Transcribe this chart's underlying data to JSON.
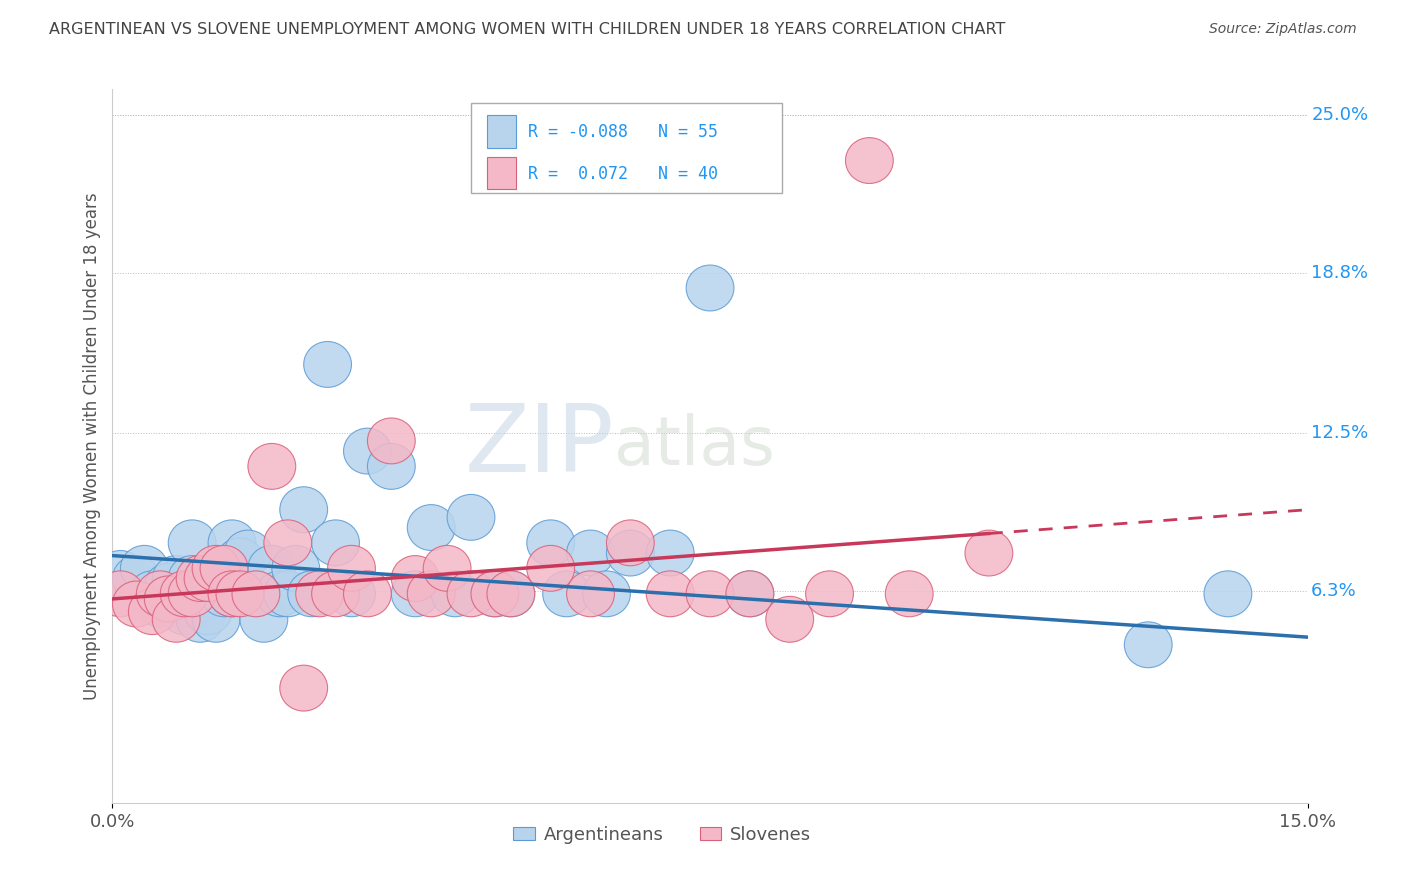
{
  "title": "ARGENTINEAN VS SLOVENE UNEMPLOYMENT AMONG WOMEN WITH CHILDREN UNDER 18 YEARS CORRELATION CHART",
  "source": "Source: ZipAtlas.com",
  "ylabel": "Unemployment Among Women with Children Under 18 years",
  "xlim": [
    0.0,
    0.15
  ],
  "ylim": [
    -0.02,
    0.26
  ],
  "plot_ylim": [
    -0.02,
    0.26
  ],
  "ytick_positions": [
    0.063,
    0.125,
    0.188,
    0.25
  ],
  "yticklabels": [
    "6.3%",
    "12.5%",
    "18.8%",
    "25.0%"
  ],
  "xticks": [
    0.0,
    0.15
  ],
  "xticklabels": [
    "0.0%",
    "15.0%"
  ],
  "color_argentinean_fill": "#b8d4ed",
  "color_argentinean_edge": "#5b9bd5",
  "color_slovene_fill": "#f4b8c8",
  "color_slovene_edge": "#d9607a",
  "color_line_argentinean": "#2c6fad",
  "color_line_slovene": "#c8385a",
  "background_color": "#ffffff",
  "grid_color": "#bbbbbb",
  "title_color": "#444444",
  "label_color": "#555555",
  "tick_label_color": "#2196f3",
  "watermark_zip_color": "#c8d8e8",
  "watermark_atlas_color": "#d0d8d0",
  "argentinean_x": [
    0.001,
    0.003,
    0.004,
    0.005,
    0.006,
    0.007,
    0.007,
    0.008,
    0.008,
    0.009,
    0.009,
    0.01,
    0.01,
    0.01,
    0.011,
    0.011,
    0.012,
    0.012,
    0.013,
    0.013,
    0.014,
    0.015,
    0.015,
    0.016,
    0.016,
    0.017,
    0.018,
    0.019,
    0.02,
    0.021,
    0.022,
    0.023,
    0.024,
    0.025,
    0.027,
    0.028,
    0.03,
    0.032,
    0.035,
    0.038,
    0.04,
    0.043,
    0.045,
    0.048,
    0.05,
    0.055,
    0.057,
    0.06,
    0.062,
    0.065,
    0.07,
    0.075,
    0.08,
    0.13,
    0.14
  ],
  "argentinean_y": [
    0.07,
    0.068,
    0.072,
    0.062,
    0.058,
    0.065,
    0.058,
    0.06,
    0.068,
    0.055,
    0.062,
    0.082,
    0.068,
    0.058,
    0.052,
    0.06,
    0.062,
    0.055,
    0.068,
    0.052,
    0.062,
    0.082,
    0.062,
    0.068,
    0.075,
    0.078,
    0.062,
    0.052,
    0.072,
    0.062,
    0.062,
    0.072,
    0.095,
    0.062,
    0.152,
    0.082,
    0.062,
    0.118,
    0.112,
    0.062,
    0.088,
    0.062,
    0.092,
    0.062,
    0.062,
    0.082,
    0.062,
    0.078,
    0.062,
    0.078,
    0.078,
    0.182,
    0.062,
    0.042,
    0.062
  ],
  "slovene_x": [
    0.001,
    0.003,
    0.005,
    0.006,
    0.007,
    0.008,
    0.009,
    0.01,
    0.011,
    0.012,
    0.013,
    0.014,
    0.015,
    0.016,
    0.018,
    0.02,
    0.022,
    0.024,
    0.026,
    0.028,
    0.03,
    0.032,
    0.035,
    0.038,
    0.04,
    0.042,
    0.045,
    0.048,
    0.05,
    0.055,
    0.06,
    0.065,
    0.07,
    0.075,
    0.08,
    0.085,
    0.09,
    0.095,
    0.1,
    0.11
  ],
  "slovene_y": [
    0.062,
    0.058,
    0.055,
    0.062,
    0.06,
    0.052,
    0.062,
    0.062,
    0.068,
    0.068,
    0.072,
    0.072,
    0.062,
    0.062,
    0.062,
    0.112,
    0.082,
    0.025,
    0.062,
    0.062,
    0.072,
    0.062,
    0.122,
    0.068,
    0.062,
    0.072,
    0.062,
    0.062,
    0.062,
    0.072,
    0.062,
    0.082,
    0.062,
    0.062,
    0.062,
    0.052,
    0.062,
    0.232,
    0.062,
    0.078
  ]
}
